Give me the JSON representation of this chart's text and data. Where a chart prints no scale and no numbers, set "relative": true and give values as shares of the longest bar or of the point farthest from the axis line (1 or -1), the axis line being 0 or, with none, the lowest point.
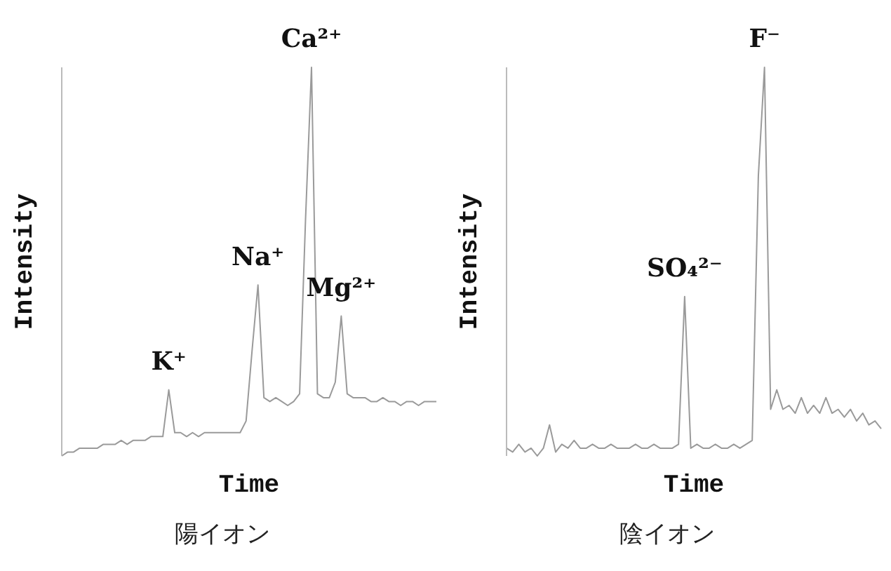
{
  "chart_data": [
    {
      "type": "line",
      "relative": true,
      "xlabel": "Time",
      "ylabel": "Intensity",
      "categories": [
        null,
        null,
        null,
        null,
        null,
        null,
        null,
        null,
        null,
        null,
        null,
        null,
        null,
        null,
        null,
        null,
        null,
        null,
        null,
        null,
        null,
        null,
        null,
        null,
        null,
        null,
        null,
        null,
        null,
        null,
        null,
        null,
        null,
        null,
        null,
        null,
        null,
        null,
        null,
        null,
        null,
        null,
        null,
        null,
        null,
        null,
        null,
        null,
        null,
        null,
        null,
        null,
        null,
        null,
        null,
        null,
        null,
        null,
        null,
        null,
        null,
        null,
        null,
        null
      ],
      "series": [
        {
          "color": "#9a9a9a",
          "values": [
            0,
            0.01,
            0.01,
            0.02,
            0.02,
            0.02,
            0.02,
            0.03,
            0.03,
            0.03,
            0.04,
            0.03,
            0.04,
            0.04,
            0.04,
            0.05,
            0.05,
            0.05,
            0.17,
            0.06,
            0.06,
            0.05,
            0.06,
            0.05,
            0.06,
            0.06,
            0.06,
            0.06,
            0.06,
            0.06,
            0.06,
            0.09,
            0.27,
            0.44,
            0.15,
            0.14,
            0.15,
            0.14,
            0.13,
            0.14,
            0.16,
            0.61,
            1,
            0.16,
            0.15,
            0.15,
            0.19,
            0.36,
            0.16,
            0.15,
            0.15,
            0.15,
            0.14,
            0.14,
            0.15,
            0.14,
            0.14,
            0.13,
            0.14,
            0.14,
            0.13,
            0.14,
            0.14,
            0.14
          ]
        }
      ],
      "annotations": [
        {
          "text": "K⁺",
          "y": 0.17
        },
        {
          "text": "Na⁺",
          "y": 0.44
        },
        {
          "text": "Ca²⁺",
          "y": 1
        },
        {
          "text": "Mg²⁺",
          "y": 0.36
        },
        "陽イオン"
      ]
    },
    {
      "type": "line",
      "relative": true,
      "xlabel": "Time",
      "ylabel": "Intensity",
      "categories": [
        null,
        null,
        null,
        null,
        null,
        null,
        null,
        null,
        null,
        null,
        null,
        null,
        null,
        null,
        null,
        null,
        null,
        null,
        null,
        null,
        null,
        null,
        null,
        null,
        null,
        null,
        null,
        null,
        null,
        null,
        null,
        null,
        null,
        null,
        null,
        null,
        null,
        null,
        null,
        null,
        null,
        null,
        null,
        null,
        null,
        null,
        null,
        null,
        null,
        null,
        null,
        null,
        null,
        null,
        null,
        null,
        null,
        null,
        null,
        null,
        null,
        null
      ],
      "series": [
        {
          "color": "#9a9a9a",
          "values": [
            0.02,
            0.01,
            0.03,
            0.01,
            0.02,
            0.0,
            0.02,
            0.08,
            0.01,
            0.03,
            0.02,
            0.04,
            0.02,
            0.02,
            0.03,
            0.02,
            0.02,
            0.03,
            0.02,
            0.02,
            0.02,
            0.03,
            0.02,
            0.02,
            0.03,
            0.02,
            0.02,
            0.02,
            0.03,
            0.41,
            0.02,
            0.03,
            0.02,
            0.02,
            0.03,
            0.02,
            0.02,
            0.03,
            0.02,
            0.03,
            0.04,
            0.72,
            1,
            0.12,
            0.17,
            0.12,
            0.13,
            0.11,
            0.15,
            0.11,
            0.13,
            0.11,
            0.15,
            0.11,
            0.12,
            0.1,
            0.12,
            0.09,
            0.11,
            0.08,
            0.09,
            0.07
          ]
        }
      ],
      "annotations": [
        {
          "text": "SO₄²⁻",
          "y": 0.41
        },
        {
          "text": "F⁻",
          "y": 1
        },
        "陰イオン"
      ]
    }
  ]
}
